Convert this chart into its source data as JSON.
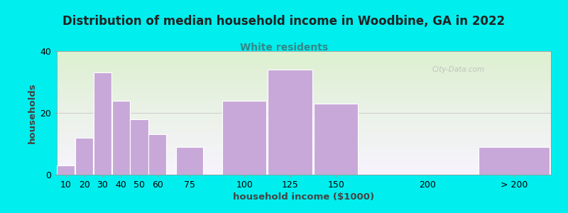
{
  "title": "Distribution of median household income in Woodbine, GA in 2022",
  "subtitle": "White residents",
  "xlabel": "household income ($1000)",
  "ylabel": "households",
  "background_outer": "#00EEEE",
  "background_inner_gradient_top_left": "#ddf0d0",
  "background_inner_gradient_bottom_right": "#f8f4ff",
  "bar_color": "#C8A8D8",
  "bar_edge_color": "#ffffff",
  "title_fontsize": 12,
  "subtitle_fontsize": 10,
  "subtitle_color": "#338888",
  "axis_label_fontsize": 9.5,
  "tick_label_fontsize": 9,
  "title_color": "#222222",
  "ylabel_color": "#444444",
  "xlabel_color": "#444444",
  "watermark": "City-Data.com",
  "categories": [
    "10",
    "20",
    "30",
    "40",
    "50",
    "60",
    "75",
    "100",
    "125",
    "150",
    "200",
    "> 200"
  ],
  "values": [
    3,
    12,
    33,
    24,
    18,
    13,
    9,
    24,
    34,
    23,
    0,
    9
  ],
  "bar_positions": [
    10,
    20,
    30,
    40,
    50,
    60,
    75,
    100,
    125,
    150,
    200,
    240
  ],
  "bar_widths": [
    10,
    10,
    10,
    10,
    10,
    10,
    15,
    25,
    25,
    25,
    25,
    40
  ],
  "ylim": [
    0,
    40
  ],
  "yticks": [
    0,
    20,
    40
  ],
  "xlim_left": 10,
  "xlim_right": 280
}
